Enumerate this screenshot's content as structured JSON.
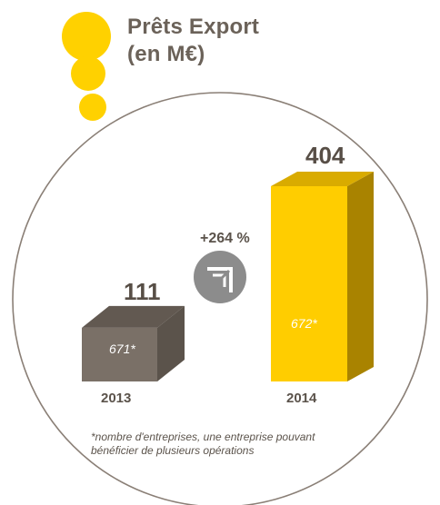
{
  "title": "Prêts Export",
  "subtitle": "(en M€)",
  "colors": {
    "bar_2013": "#7a7067",
    "bar_2014": "#ffcd00",
    "dots": "#ffd100",
    "growth_circle": "#8c8c8c",
    "text": "#5b534b"
  },
  "icons": [
    "growth-arrows-icon"
  ],
  "chart_data": {
    "type": "bar",
    "title": "Prêts Export",
    "subtitle": "(en M€)",
    "categories": [
      "2013",
      "2014"
    ],
    "values": [
      111,
      404
    ],
    "value_labels": [
      "111",
      "404"
    ],
    "inner_labels": [
      "671*",
      "672*"
    ],
    "ylim": [
      0,
      404
    ],
    "grid": false,
    "annotations": [
      "+264 %"
    ]
  },
  "growth_label": "+264 %",
  "footnote": "*nombre d'entreprises, une entreprise pouvant bénéficier de plusieurs opérations"
}
